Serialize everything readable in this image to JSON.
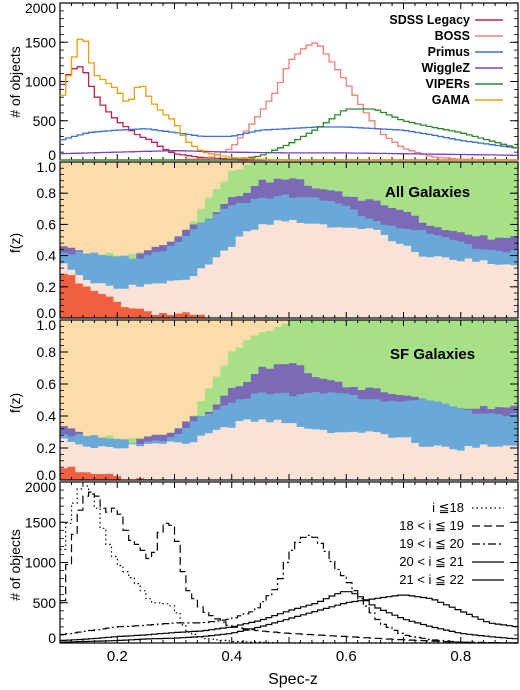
{
  "chart_data": [
    {
      "type": "line",
      "panel": "redshift-distribution-by-survey",
      "ylabel": "# of objects",
      "xlim": [
        0.1,
        0.9
      ],
      "ylim": [
        0,
        2000
      ],
      "yticks": [
        0,
        500,
        1000,
        1500,
        2000
      ],
      "legend_position": "top-right",
      "series": [
        {
          "name": "SDSS Legacy",
          "color": "#c0204a",
          "x": [
            0.1,
            0.12,
            0.14,
            0.16,
            0.18,
            0.2,
            0.22,
            0.24,
            0.26,
            0.28,
            0.3,
            0.35,
            0.4,
            0.5,
            0.6,
            0.7,
            0.8,
            0.9
          ],
          "y": [
            900,
            1150,
            1200,
            850,
            650,
            500,
            400,
            300,
            250,
            150,
            80,
            30,
            10,
            0,
            0,
            0,
            0,
            0
          ]
        },
        {
          "name": "BOSS",
          "color": "#f08078",
          "x": [
            0.1,
            0.2,
            0.3,
            0.36,
            0.4,
            0.44,
            0.48,
            0.5,
            0.53,
            0.55,
            0.57,
            0.6,
            0.63,
            0.66,
            0.7,
            0.75,
            0.8,
            0.9
          ],
          "y": [
            0,
            0,
            0,
            20,
            150,
            500,
            900,
            1250,
            1450,
            1500,
            1300,
            1000,
            650,
            350,
            150,
            40,
            10,
            0
          ],
          "style": "step"
        },
        {
          "name": "Primus",
          "color": "#3a6fd8",
          "x": [
            0.1,
            0.15,
            0.2,
            0.25,
            0.3,
            0.35,
            0.4,
            0.45,
            0.5,
            0.55,
            0.6,
            0.65,
            0.7,
            0.75,
            0.8,
            0.85,
            0.9
          ],
          "y": [
            250,
            350,
            380,
            400,
            350,
            300,
            300,
            380,
            400,
            420,
            420,
            400,
            380,
            320,
            250,
            200,
            150
          ]
        },
        {
          "name": "WiggleZ",
          "color": "#7a3fc8",
          "x": [
            0.1,
            0.2,
            0.3,
            0.4,
            0.5,
            0.6,
            0.7,
            0.8,
            0.9
          ],
          "y": [
            80,
            100,
            120,
            100,
            90,
            90,
            80,
            70,
            60
          ]
        },
        {
          "name": "VIPERs",
          "color": "#2a8a2a",
          "x": [
            0.1,
            0.4,
            0.45,
            0.5,
            0.55,
            0.6,
            0.65,
            0.7,
            0.75,
            0.8,
            0.85,
            0.9
          ],
          "y": [
            0,
            0,
            50,
            200,
            400,
            650,
            650,
            500,
            420,
            350,
            250,
            150
          ]
        },
        {
          "name": "GAMA",
          "color": "#e8a010",
          "x": [
            0.1,
            0.12,
            0.14,
            0.16,
            0.18,
            0.2,
            0.22,
            0.24,
            0.26,
            0.28,
            0.3,
            0.32,
            0.35,
            0.4,
            0.45,
            0.5
          ],
          "y": [
            700,
            1200,
            1650,
            1100,
            1000,
            900,
            700,
            1000,
            750,
            600,
            500,
            250,
            100,
            30,
            10,
            0
          ]
        }
      ]
    },
    {
      "type": "area",
      "panel": "fraction-all",
      "annotation": "All Galaxies",
      "ylabel": "f(z)",
      "xlim": [
        0.1,
        0.9
      ],
      "ylim": [
        0,
        1.0
      ],
      "yticks": [
        "0.0",
        "0.2",
        "0.4",
        "0.6",
        "0.8",
        "1.0"
      ],
      "stacked": true,
      "layer_colors": [
        "#f06040",
        "#fbe2d6",
        "#6aa8d8",
        "#7a6ab8",
        "#a8e088",
        "#fbdcaa"
      ],
      "x": [
        0.1,
        0.15,
        0.2,
        0.25,
        0.3,
        0.33,
        0.36,
        0.4,
        0.45,
        0.5,
        0.55,
        0.6,
        0.65,
        0.7,
        0.75,
        0.8,
        0.85,
        0.9
      ],
      "cumulative_boundaries": [
        [
          0.3,
          0.18,
          0.1,
          0.05,
          0.02,
          0.01,
          0.0,
          0.0,
          0.0,
          0.0,
          0.0,
          0.0,
          0.0,
          0.0,
          0.0,
          0.0,
          0.0,
          0.0
        ],
        [
          0.36,
          0.25,
          0.2,
          0.2,
          0.22,
          0.28,
          0.35,
          0.48,
          0.58,
          0.62,
          0.62,
          0.58,
          0.55,
          0.45,
          0.4,
          0.38,
          0.34,
          0.32
        ],
        [
          0.45,
          0.4,
          0.38,
          0.4,
          0.48,
          0.55,
          0.62,
          0.72,
          0.78,
          0.8,
          0.76,
          0.7,
          0.64,
          0.58,
          0.52,
          0.48,
          0.44,
          0.44
        ],
        [
          0.46,
          0.41,
          0.39,
          0.41,
          0.5,
          0.58,
          0.66,
          0.78,
          0.86,
          0.88,
          0.85,
          0.8,
          0.74,
          0.68,
          0.6,
          0.56,
          0.5,
          0.5
        ],
        [
          0.46,
          0.41,
          0.39,
          0.41,
          0.51,
          0.62,
          0.75,
          0.92,
          1.0,
          1.0,
          1.0,
          1.0,
          1.0,
          1.0,
          1.0,
          1.0,
          1.0,
          1.0
        ],
        [
          1.0,
          1.0,
          1.0,
          1.0,
          1.0,
          1.0,
          1.0,
          1.0,
          1.0,
          1.0,
          1.0,
          1.0,
          1.0,
          1.0,
          1.0,
          1.0,
          1.0,
          1.0
        ]
      ]
    },
    {
      "type": "area",
      "panel": "fraction-sf",
      "annotation": "SF Galaxies",
      "ylabel": "f(z)",
      "xlim": [
        0.1,
        0.9
      ],
      "ylim": [
        0,
        1.0
      ],
      "yticks": [
        "0.0",
        "0.2",
        "0.4",
        "0.6",
        "0.8",
        "1.0"
      ],
      "stacked": true,
      "layer_colors": [
        "#f06040",
        "#fbe2d6",
        "#6aa8d8",
        "#7a6ab8",
        "#a8e088",
        "#fbdcaa"
      ],
      "x": [
        0.1,
        0.15,
        0.2,
        0.25,
        0.3,
        0.33,
        0.36,
        0.4,
        0.45,
        0.5,
        0.55,
        0.6,
        0.65,
        0.7,
        0.75,
        0.8,
        0.85,
        0.9
      ],
      "cumulative_boundaries": [
        [
          0.08,
          0.03,
          0.02,
          0.01,
          0.0,
          0.0,
          0.0,
          0.0,
          0.0,
          0.0,
          0.0,
          0.0,
          0.0,
          0.0,
          0.0,
          0.0,
          0.0,
          0.0
        ],
        [
          0.26,
          0.22,
          0.21,
          0.21,
          0.22,
          0.25,
          0.3,
          0.35,
          0.36,
          0.35,
          0.33,
          0.3,
          0.28,
          0.25,
          0.22,
          0.2,
          0.2,
          0.2
        ],
        [
          0.32,
          0.26,
          0.24,
          0.24,
          0.28,
          0.35,
          0.4,
          0.48,
          0.56,
          0.55,
          0.54,
          0.52,
          0.52,
          0.5,
          0.48,
          0.44,
          0.42,
          0.42
        ],
        [
          0.34,
          0.27,
          0.25,
          0.25,
          0.3,
          0.38,
          0.45,
          0.58,
          0.68,
          0.72,
          0.66,
          0.6,
          0.56,
          0.52,
          0.5,
          0.46,
          0.44,
          0.44
        ],
        [
          0.34,
          0.27,
          0.25,
          0.25,
          0.31,
          0.4,
          0.55,
          0.78,
          0.92,
          1.0,
          1.0,
          1.0,
          1.0,
          1.0,
          1.0,
          1.0,
          1.0,
          1.0
        ],
        [
          1.0,
          1.0,
          1.0,
          1.0,
          1.0,
          1.0,
          1.0,
          1.0,
          1.0,
          1.0,
          1.0,
          1.0,
          1.0,
          1.0,
          1.0,
          1.0,
          1.0,
          1.0
        ]
      ]
    },
    {
      "type": "line",
      "panel": "redshift-distribution-by-magnitude",
      "ylabel": "# of objects",
      "xlabel": "Spec-z",
      "xlim": [
        0.1,
        0.9
      ],
      "ylim": [
        0,
        2000
      ],
      "yticks": [
        0,
        500,
        1000,
        1500,
        2000
      ],
      "xticks": [
        "0.2",
        "0.4",
        "0.6",
        "0.8"
      ],
      "legend_position": "top-right",
      "series": [
        {
          "name": "i ≦18",
          "dash": "1.5,3",
          "x": [
            0.1,
            0.12,
            0.14,
            0.16,
            0.18,
            0.2,
            0.22,
            0.24,
            0.26,
            0.28,
            0.3,
            0.32,
            0.35,
            0.4,
            0.45,
            0.5,
            0.6,
            0.7,
            0.8,
            0.9
          ],
          "y": [
            1000,
            1650,
            2000,
            1800,
            1300,
            1000,
            850,
            700,
            500,
            500,
            450,
            150,
            60,
            20,
            10,
            0,
            0,
            0,
            0,
            0
          ]
        },
        {
          "name": "18 < i ≦ 19",
          "dash": "8,4",
          "x": [
            0.1,
            0.12,
            0.14,
            0.16,
            0.18,
            0.2,
            0.22,
            0.24,
            0.26,
            0.28,
            0.3,
            0.32,
            0.35,
            0.4,
            0.45,
            0.5,
            0.55,
            0.6,
            0.65,
            0.7,
            0.8,
            0.9
          ],
          "y": [
            300,
            1200,
            1800,
            1900,
            1600,
            1700,
            1300,
            1200,
            1000,
            1500,
            1450,
            700,
            400,
            200,
            150,
            120,
            100,
            80,
            60,
            40,
            10,
            0
          ]
        },
        {
          "name": "19 < i ≦ 20",
          "dash": "8,3,2,3",
          "x": [
            0.1,
            0.15,
            0.2,
            0.25,
            0.3,
            0.35,
            0.4,
            0.44,
            0.48,
            0.5,
            0.52,
            0.54,
            0.56,
            0.58,
            0.6,
            0.63,
            0.66,
            0.7,
            0.75,
            0.8,
            0.9
          ],
          "y": [
            100,
            150,
            200,
            220,
            250,
            250,
            300,
            400,
            700,
            1100,
            1300,
            1350,
            1200,
            950,
            800,
            500,
            250,
            100,
            40,
            10,
            0
          ]
        },
        {
          "name": "20 < i ≦ 21",
          "dash": "",
          "x": [
            0.1,
            0.15,
            0.2,
            0.25,
            0.3,
            0.35,
            0.4,
            0.45,
            0.5,
            0.55,
            0.58,
            0.6,
            0.62,
            0.65,
            0.7,
            0.75,
            0.8,
            0.85,
            0.9
          ],
          "y": [
            30,
            50,
            80,
            100,
            130,
            150,
            200,
            280,
            400,
            500,
            600,
            650,
            600,
            450,
            300,
            200,
            120,
            80,
            50
          ]
        },
        {
          "name": "21 < i ≦ 22",
          "dash": "",
          "x": [
            0.1,
            0.15,
            0.2,
            0.25,
            0.3,
            0.35,
            0.4,
            0.45,
            0.5,
            0.55,
            0.6,
            0.65,
            0.7,
            0.75,
            0.8,
            0.85,
            0.9
          ],
          "y": [
            10,
            20,
            30,
            50,
            60,
            80,
            120,
            200,
            300,
            400,
            500,
            550,
            600,
            550,
            400,
            250,
            200
          ]
        }
      ]
    }
  ]
}
